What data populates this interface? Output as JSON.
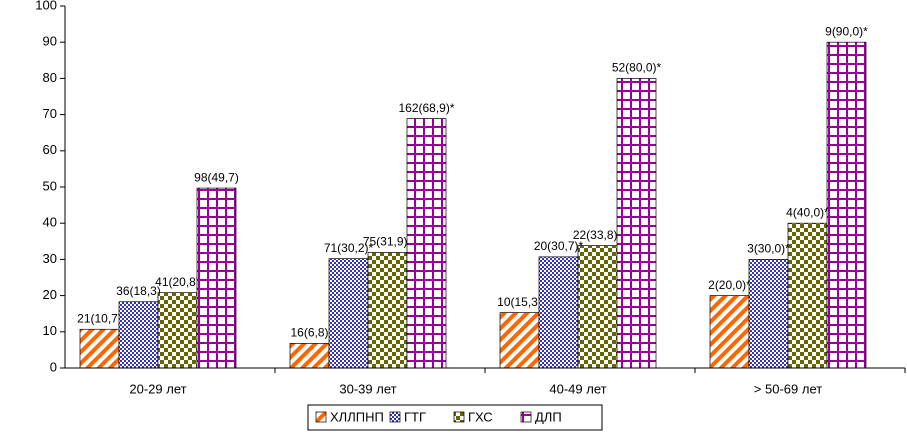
{
  "chart_data": {
    "type": "bar",
    "categories": [
      "20-29 лет",
      "30-39 лет",
      "40-49 лет",
      "> 50-69 лет"
    ],
    "series": [
      {
        "name": "ХЛЛПНП",
        "color": "#ff6600",
        "values": [
          10.7,
          6.8,
          15.3,
          20.0
        ],
        "value_labels": [
          "21(10,7)",
          "16(6,8)",
          "10(15,3)",
          "2(20,0)*"
        ]
      },
      {
        "name": "ГТГ",
        "color": "#3333cc",
        "values": [
          18.3,
          30.2,
          30.7,
          30.0
        ],
        "value_labels": [
          "36(18,3)",
          "71(30,2)*",
          "20(30,7)*",
          "3(30,0)*"
        ]
      },
      {
        "name": "ГХС",
        "color": "#666600",
        "values": [
          20.8,
          31.9,
          33.8,
          40.0
        ],
        "value_labels": [
          "41(20,8)",
          "75(31,9)*",
          "22(33,8)*",
          "4(40,0)*"
        ]
      },
      {
        "name": "ДЛП",
        "color": "#990099",
        "values": [
          49.7,
          68.9,
          80.0,
          90.0
        ],
        "value_labels": [
          "98(49,7)",
          "162(68,9)*",
          "52(80,0)*",
          "9(90,0)*"
        ]
      }
    ],
    "ylim": [
      0,
      100
    ],
    "yticks": [
      0,
      10,
      20,
      30,
      40,
      50,
      60,
      70,
      80,
      90,
      100
    ],
    "legend": "bottom"
  }
}
